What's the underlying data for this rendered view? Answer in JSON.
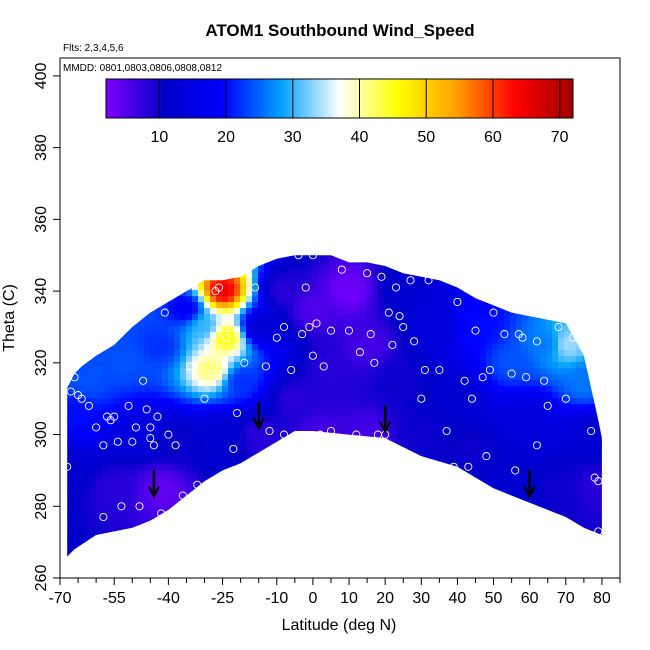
{
  "chart_data": {
    "type": "heatmap",
    "title": "ATOM1 Southbound Wind_Speed",
    "annotations": [
      "Flts: 2,3,4,5,6",
      "MMDD: 0801,0803,0806,0808,0812"
    ],
    "xlabel": "Latitude (deg N)",
    "ylabel": "Theta (C)",
    "xlim": [
      -70,
      85
    ],
    "ylim": [
      260,
      405
    ],
    "x_ticks": [
      -70,
      -55,
      -40,
      -25,
      -10,
      0,
      10,
      20,
      30,
      40,
      50,
      60,
      70,
      80
    ],
    "x_tick_labels": [
      "-70",
      "-55",
      "-40",
      "-25",
      "-10",
      "0",
      "10",
      "20",
      "30",
      "40",
      "50",
      "60",
      "70",
      "80"
    ],
    "x_minor_ticks": [
      -65,
      -60,
      -50,
      -45,
      -35,
      -30,
      -20,
      -15,
      -5,
      5,
      15,
      25,
      35,
      45,
      55,
      65,
      75,
      85
    ],
    "y_ticks": [
      260,
      280,
      300,
      320,
      340,
      360,
      380,
      400
    ],
    "y_tick_labels": [
      "260",
      "280",
      "300",
      "320",
      "340",
      "360",
      "380",
      "400"
    ],
    "colorbar": {
      "range": [
        2,
        72
      ],
      "ticks": [
        10,
        20,
        30,
        40,
        50,
        60,
        70
      ],
      "tick_labels": [
        "10",
        "20",
        "30",
        "40",
        "50",
        "60",
        "70"
      ],
      "colors": [
        "#7f00ff",
        "#0000c8",
        "#0000ff",
        "#00a0ff",
        "#ffffff",
        "#ffff00",
        "#ffa000",
        "#ff0000",
        "#a00000"
      ]
    },
    "field_outline": {
      "top": [
        [
          -68,
          313
        ],
        [
          -66,
          317
        ],
        [
          -64,
          319
        ],
        [
          -60,
          322
        ],
        [
          -55,
          325
        ],
        [
          -50,
          330
        ],
        [
          -45,
          334
        ],
        [
          -40,
          337
        ],
        [
          -35,
          340
        ],
        [
          -30,
          343
        ],
        [
          -25,
          343
        ],
        [
          -20,
          344
        ],
        [
          -15,
          347
        ],
        [
          -10,
          349
        ],
        [
          -5,
          350
        ],
        [
          0,
          350
        ],
        [
          5,
          350
        ],
        [
          10,
          348
        ],
        [
          15,
          348
        ],
        [
          20,
          347
        ],
        [
          25,
          345
        ],
        [
          30,
          344
        ],
        [
          35,
          343
        ],
        [
          40,
          341
        ],
        [
          45,
          338
        ],
        [
          50,
          336
        ],
        [
          55,
          334
        ],
        [
          60,
          333
        ],
        [
          65,
          332
        ],
        [
          70,
          331
        ],
        [
          75,
          322
        ],
        [
          79,
          304
        ],
        [
          80,
          299
        ]
      ],
      "bottom": [
        [
          80,
          272
        ],
        [
          75,
          274
        ],
        [
          70,
          277
        ],
        [
          60,
          281
        ],
        [
          50,
          285
        ],
        [
          40,
          291
        ],
        [
          30,
          294
        ],
        [
          20,
          299
        ],
        [
          10,
          300
        ],
        [
          0,
          301
        ],
        [
          -5,
          301
        ],
        [
          -10,
          298
        ],
        [
          -15,
          295
        ],
        [
          -20,
          292
        ],
        [
          -25,
          290
        ],
        [
          -30,
          287
        ],
        [
          -35,
          283
        ],
        [
          -40,
          279
        ],
        [
          -45,
          276
        ],
        [
          -50,
          274
        ],
        [
          -55,
          273
        ],
        [
          -60,
          272
        ],
        [
          -66,
          268
        ],
        [
          -68,
          266
        ]
      ]
    },
    "wind_speed_field": [
      {
        "lat": -68,
        "theta": 290,
        "speed": 12
      },
      {
        "lat": -65,
        "theta": 305,
        "speed": 20
      },
      {
        "lat": -62,
        "theta": 315,
        "speed": 24
      },
      {
        "lat": -55,
        "theta": 285,
        "speed": 8
      },
      {
        "lat": -52,
        "theta": 320,
        "speed": 24
      },
      {
        "lat": -48,
        "theta": 300,
        "speed": 14
      },
      {
        "lat": -42,
        "theta": 285,
        "speed": 4
      },
      {
        "lat": -42,
        "theta": 325,
        "speed": 22
      },
      {
        "lat": -38,
        "theta": 298,
        "speed": 10
      },
      {
        "lat": -35,
        "theta": 335,
        "speed": 18
      },
      {
        "lat": -30,
        "theta": 330,
        "speed": 30
      },
      {
        "lat": -28,
        "theta": 318,
        "speed": 42
      },
      {
        "lat": -25,
        "theta": 340,
        "speed": 65
      },
      {
        "lat": -24,
        "theta": 327,
        "speed": 46
      },
      {
        "lat": -25,
        "theta": 300,
        "speed": 12
      },
      {
        "lat": -20,
        "theta": 315,
        "speed": 22
      },
      {
        "lat": -15,
        "theta": 330,
        "speed": 12
      },
      {
        "lat": -15,
        "theta": 300,
        "speed": 8
      },
      {
        "lat": -8,
        "theta": 340,
        "speed": 8
      },
      {
        "lat": -5,
        "theta": 310,
        "speed": 8
      },
      {
        "lat": 0,
        "theta": 335,
        "speed": 5
      },
      {
        "lat": 2,
        "theta": 300,
        "speed": 6
      },
      {
        "lat": 5,
        "theta": 318,
        "speed": 8
      },
      {
        "lat": 10,
        "theta": 340,
        "speed": 3
      },
      {
        "lat": 15,
        "theta": 325,
        "speed": 6
      },
      {
        "lat": 15,
        "theta": 300,
        "speed": 6
      },
      {
        "lat": 25,
        "theta": 340,
        "speed": 12
      },
      {
        "lat": 25,
        "theta": 315,
        "speed": 10
      },
      {
        "lat": 30,
        "theta": 300,
        "speed": 10
      },
      {
        "lat": 35,
        "theta": 330,
        "speed": 14
      },
      {
        "lat": 40,
        "theta": 310,
        "speed": 12
      },
      {
        "lat": 45,
        "theta": 330,
        "speed": 20
      },
      {
        "lat": 45,
        "theta": 295,
        "speed": 10
      },
      {
        "lat": 55,
        "theta": 320,
        "speed": 24
      },
      {
        "lat": 55,
        "theta": 290,
        "speed": 12
      },
      {
        "lat": 60,
        "theta": 305,
        "speed": 14
      },
      {
        "lat": 65,
        "theta": 325,
        "speed": 26
      },
      {
        "lat": 70,
        "theta": 325,
        "speed": 34
      },
      {
        "lat": 75,
        "theta": 315,
        "speed": 26
      },
      {
        "lat": 78,
        "theta": 300,
        "speed": 12
      },
      {
        "lat": 78,
        "theta": 285,
        "speed": 8
      },
      {
        "lat": 70,
        "theta": 285,
        "speed": 10
      }
    ],
    "observations": [
      [
        -68,
        291
      ],
      [
        -67,
        312
      ],
      [
        -66,
        316
      ],
      [
        -65,
        311
      ],
      [
        -64,
        310
      ],
      [
        -62,
        308
      ],
      [
        -60,
        302
      ],
      [
        -58,
        297
      ],
      [
        -58,
        277
      ],
      [
        -57,
        305
      ],
      [
        -56,
        304
      ],
      [
        -55,
        305
      ],
      [
        -54,
        298
      ],
      [
        -53,
        280
      ],
      [
        -51,
        308
      ],
      [
        -50,
        298
      ],
      [
        -49,
        302
      ],
      [
        -48,
        280
      ],
      [
        -47,
        315
      ],
      [
        -46,
        307
      ],
      [
        -45,
        302
      ],
      [
        -45,
        299
      ],
      [
        -44,
        297
      ],
      [
        -43,
        305
      ],
      [
        -42,
        278
      ],
      [
        -41,
        334
      ],
      [
        -40,
        300
      ],
      [
        -38,
        297
      ],
      [
        -36,
        283
      ],
      [
        -34,
        319
      ],
      [
        -32,
        286
      ],
      [
        -30,
        310
      ],
      [
        -28,
        317
      ],
      [
        -27,
        340
      ],
      [
        -26,
        341
      ],
      [
        -24,
        327
      ],
      [
        -22,
        296
      ],
      [
        -21,
        306
      ],
      [
        -19,
        320
      ],
      [
        -17,
        348
      ],
      [
        -16,
        341
      ],
      [
        -13,
        319
      ],
      [
        -12,
        301
      ],
      [
        -10,
        327
      ],
      [
        -8,
        330
      ],
      [
        -8,
        300
      ],
      [
        -6,
        318
      ],
      [
        -4,
        350
      ],
      [
        -3,
        328
      ],
      [
        -2,
        341
      ],
      [
        -1,
        330
      ],
      [
        0,
        350
      ],
      [
        0,
        322
      ],
      [
        0,
        299
      ],
      [
        1,
        331
      ],
      [
        2,
        300
      ],
      [
        3,
        319
      ],
      [
        5,
        329
      ],
      [
        5,
        301
      ],
      [
        8,
        346
      ],
      [
        10,
        329
      ],
      [
        12,
        300
      ],
      [
        13,
        323
      ],
      [
        15,
        345
      ],
      [
        16,
        328
      ],
      [
        17,
        320
      ],
      [
        18,
        300
      ],
      [
        19,
        344
      ],
      [
        20,
        300
      ],
      [
        21,
        334
      ],
      [
        22,
        325
      ],
      [
        23,
        341
      ],
      [
        24,
        333
      ],
      [
        25,
        330
      ],
      [
        27,
        343
      ],
      [
        28,
        326
      ],
      [
        30,
        310
      ],
      [
        31,
        318
      ],
      [
        32,
        343
      ],
      [
        35,
        318
      ],
      [
        37,
        301
      ],
      [
        39,
        291
      ],
      [
        40,
        337
      ],
      [
        42,
        315
      ],
      [
        43,
        291
      ],
      [
        44,
        310
      ],
      [
        45,
        329
      ],
      [
        47,
        316
      ],
      [
        48,
        294
      ],
      [
        49,
        318
      ],
      [
        50,
        334
      ],
      [
        53,
        328
      ],
      [
        55,
        317
      ],
      [
        56,
        290
      ],
      [
        57,
        328
      ],
      [
        58,
        327
      ],
      [
        59,
        316
      ],
      [
        62,
        326
      ],
      [
        62,
        297
      ],
      [
        64,
        315
      ],
      [
        65,
        308
      ],
      [
        68,
        330
      ],
      [
        70,
        310
      ],
      [
        72,
        327
      ],
      [
        77,
        301
      ],
      [
        78,
        288
      ],
      [
        79,
        287
      ],
      [
        79,
        273
      ]
    ],
    "arrows": [
      [
        -44,
        285
      ],
      [
        -15,
        304
      ],
      [
        20,
        303
      ],
      [
        60,
        285
      ]
    ]
  }
}
